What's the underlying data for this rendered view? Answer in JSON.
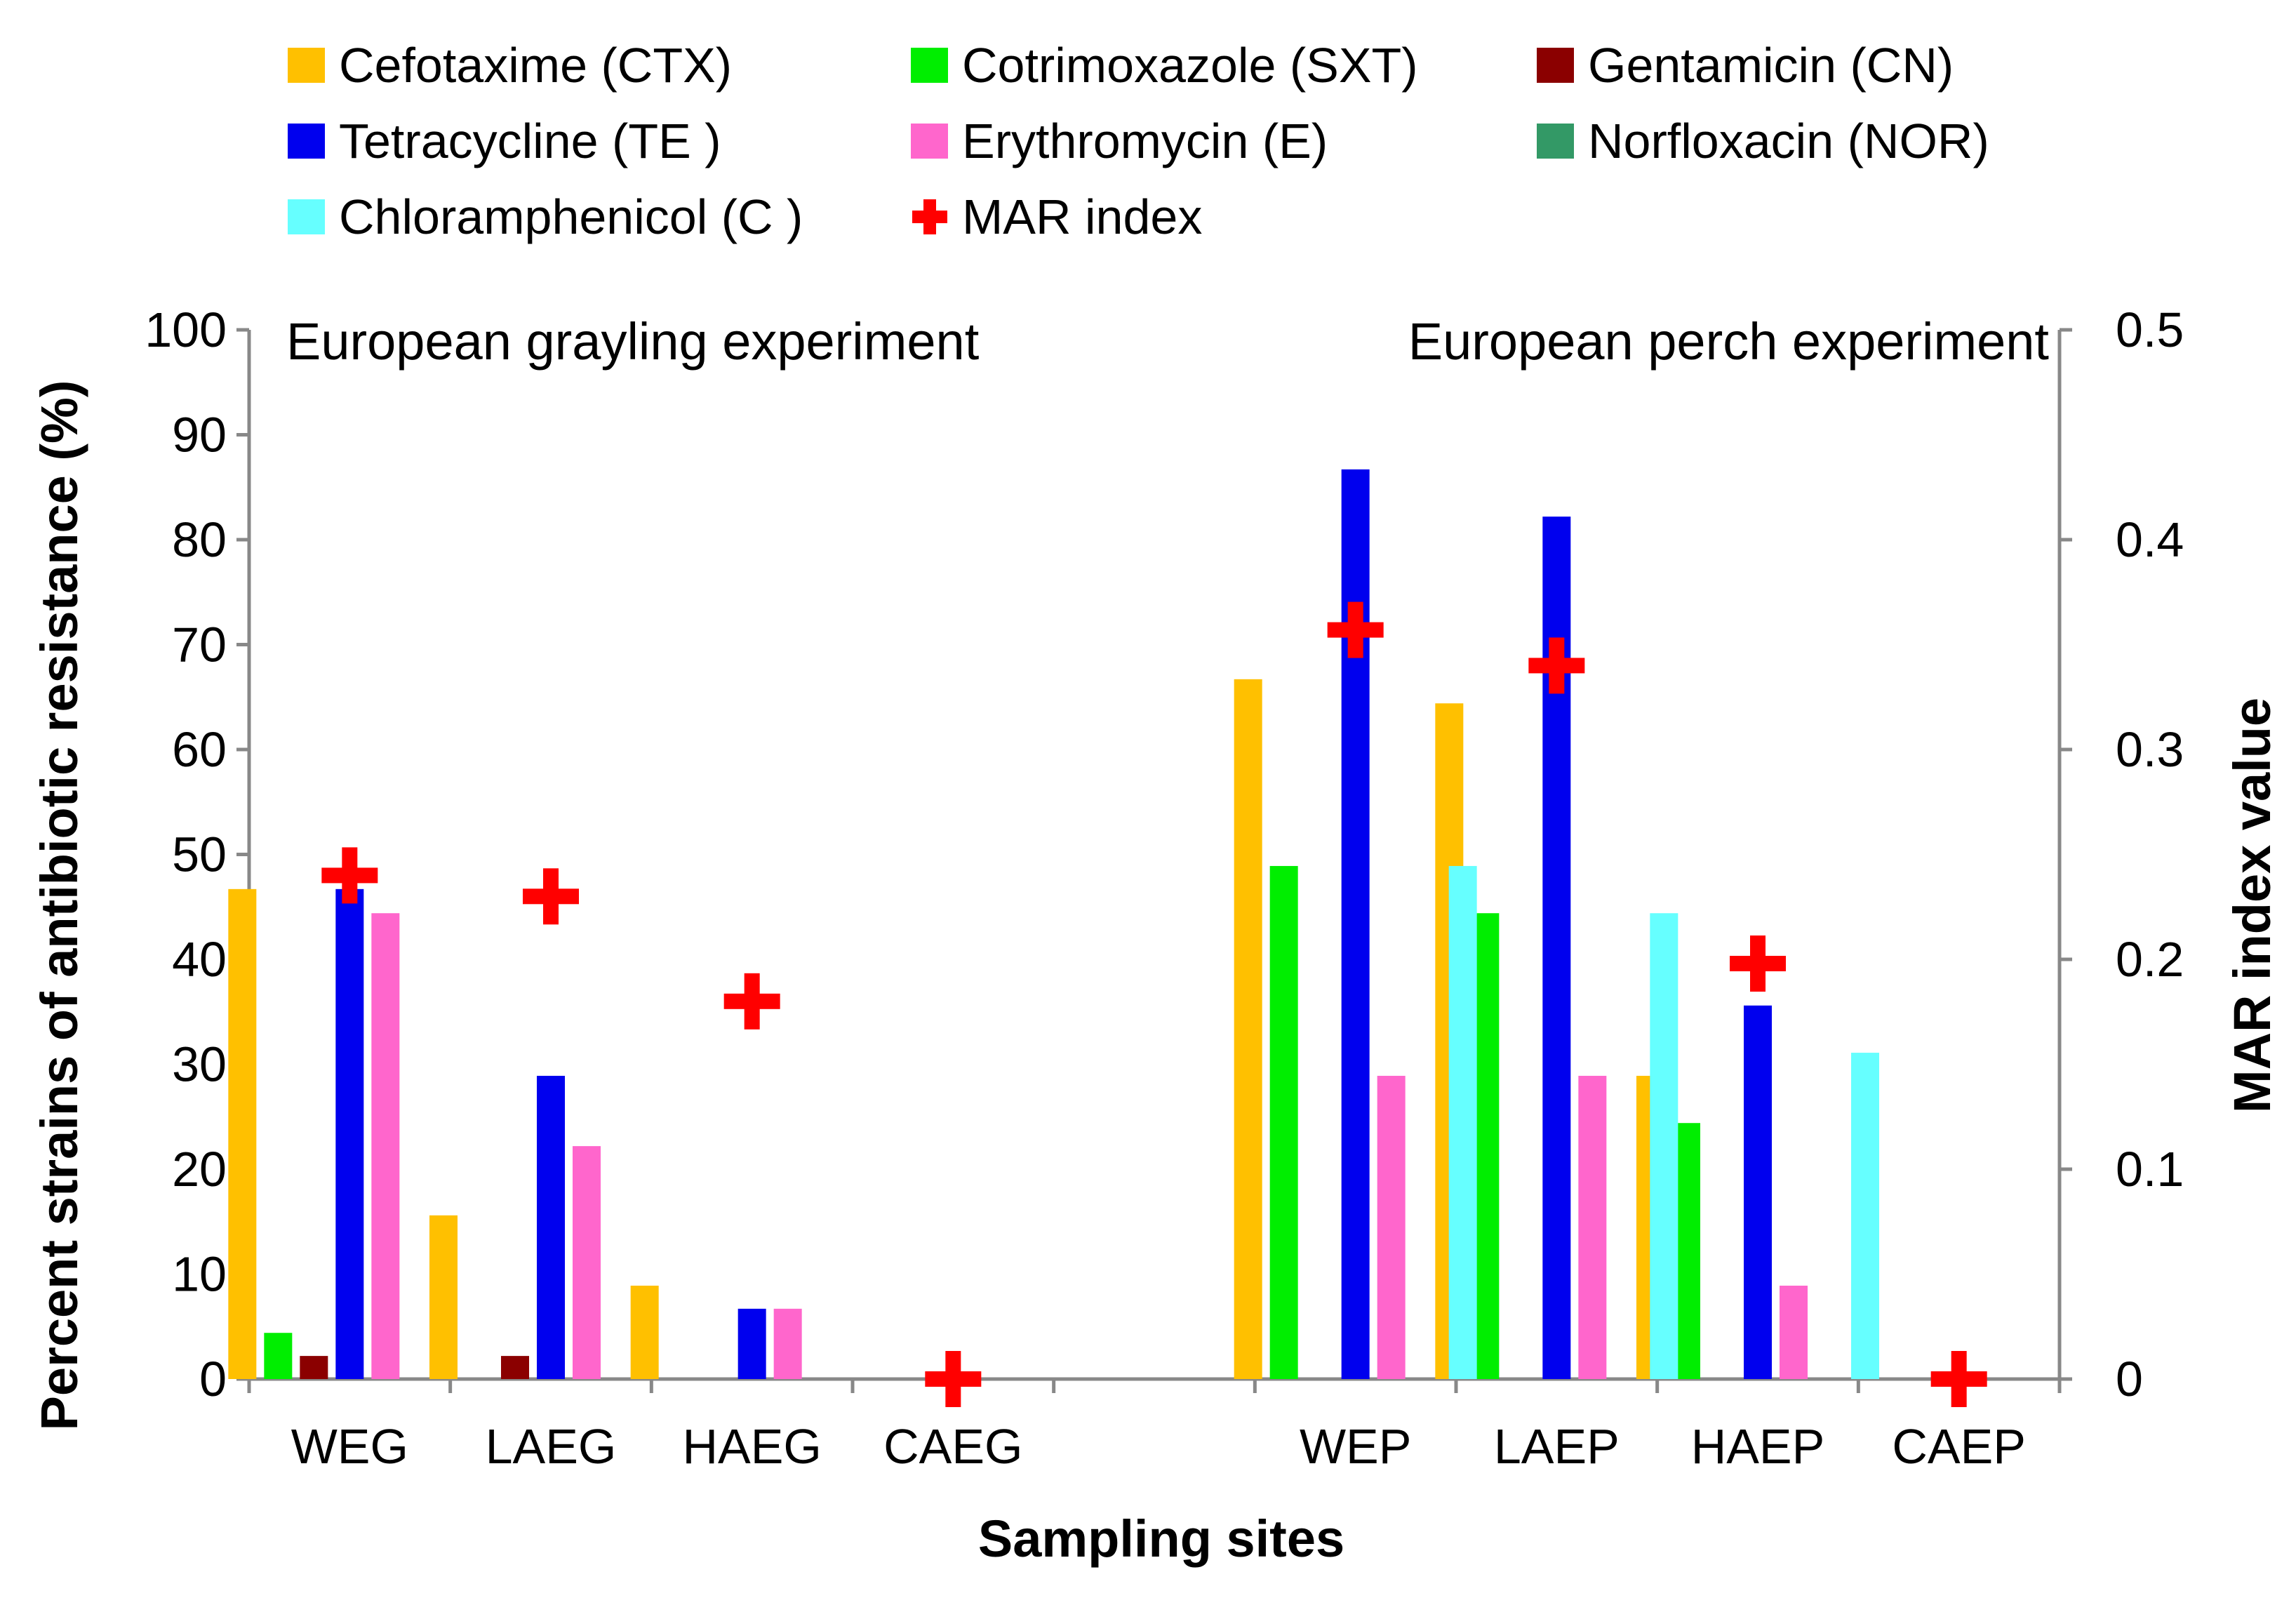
{
  "chart_data": {
    "type": "bar",
    "title": "",
    "xlabel": "Sampling sites",
    "ylabel": "Percent strains of antibiotic resistance (%)",
    "y2label": "MAR index value",
    "ylim": [
      0,
      100
    ],
    "y2lim": [
      0,
      0.5
    ],
    "yticks": [
      "0",
      "10",
      "20",
      "30",
      "40",
      "50",
      "60",
      "70",
      "80",
      "90",
      "100"
    ],
    "y2ticks": [
      "0",
      "0.1",
      "0.2",
      "0.3",
      "0.4",
      "0.5"
    ],
    "grid": false,
    "legend_position": "top",
    "annotations": [
      "European grayling experiment",
      "European perch experiment"
    ],
    "categories": [
      "WEG",
      "LAEG",
      "HAEG",
      "CAEG",
      "",
      "WEP",
      "LAEP",
      "HAEP",
      "CAEP"
    ],
    "series": [
      {
        "name": "Cefotaxime (CTX)",
        "color": "#FFC000",
        "values": [
          46.7,
          15.6,
          8.9,
          0,
          null,
          66.7,
          64.4,
          28.9,
          0
        ]
      },
      {
        "name": "Cotrimoxazole (SXT)",
        "color": "#00EE00",
        "values": [
          4.4,
          0,
          0,
          0,
          null,
          48.9,
          44.4,
          24.4,
          0
        ]
      },
      {
        "name": "Gentamicin (CN)",
        "color": "#8B0000",
        "values": [
          2.2,
          2.2,
          0,
          0,
          null,
          0,
          0,
          0,
          0
        ]
      },
      {
        "name": "Tetracycline (TE )",
        "color": "#0000EE",
        "values": [
          46.7,
          28.9,
          6.7,
          0,
          null,
          86.7,
          82.2,
          35.6,
          0
        ]
      },
      {
        "name": "Erythromycin (E)",
        "color": "#FF66CC",
        "values": [
          44.4,
          22.2,
          6.7,
          0,
          null,
          28.9,
          28.9,
          8.9,
          0
        ]
      },
      {
        "name": "Norfloxacin (NOR)",
        "color": "#339966",
        "values": [
          0,
          0,
          0,
          0,
          null,
          0,
          0,
          0,
          0
        ]
      },
      {
        "name": "Chloramphenicol (C )",
        "color": "#66FFFF",
        "values": [
          0,
          0,
          0,
          0,
          null,
          48.9,
          44.4,
          31.1,
          0
        ]
      }
    ],
    "mar_index": {
      "name": "MAR index",
      "color": "#FF0000",
      "axis": "right",
      "values": [
        0.24,
        0.23,
        0.18,
        0.0,
        null,
        0.357,
        0.34,
        0.198,
        0.0
      ]
    }
  }
}
